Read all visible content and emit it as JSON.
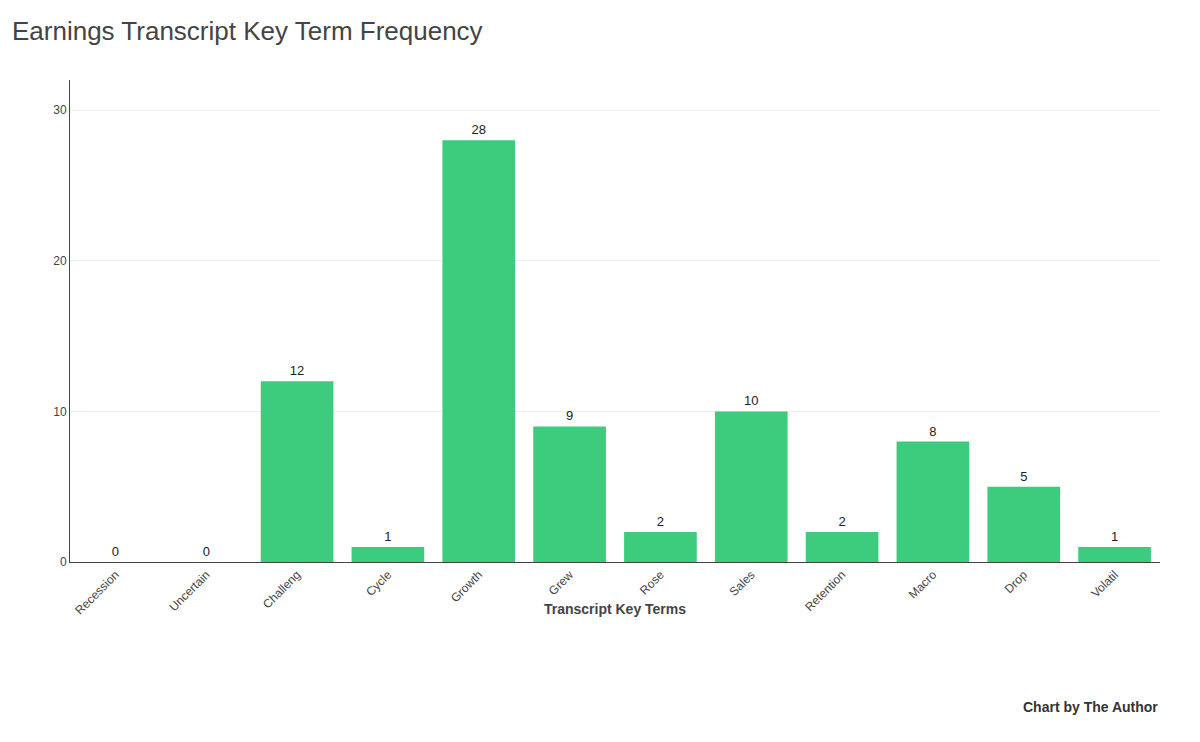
{
  "chart_data": {
    "type": "bar",
    "title": "Earnings Transcript Key Term Frequency",
    "categories": [
      "Recession",
      "Uncertain",
      "Challeng",
      "Cycle",
      "Growth",
      "Grew",
      "Rose",
      "Sales",
      "Retention",
      "Macro",
      "Drop",
      "Volatil"
    ],
    "values": [
      0,
      0,
      12,
      1,
      28,
      9,
      2,
      10,
      2,
      8,
      5,
      1
    ],
    "color": "#3DCC7E",
    "xlabel": "Transcript Key Terms",
    "annotations": [
      "Chart by The Author"
    ],
    "ylim": [
      0,
      32
    ],
    "yticks": [
      0,
      10,
      20,
      30
    ],
    "grid": true,
    "data_labels": true
  }
}
